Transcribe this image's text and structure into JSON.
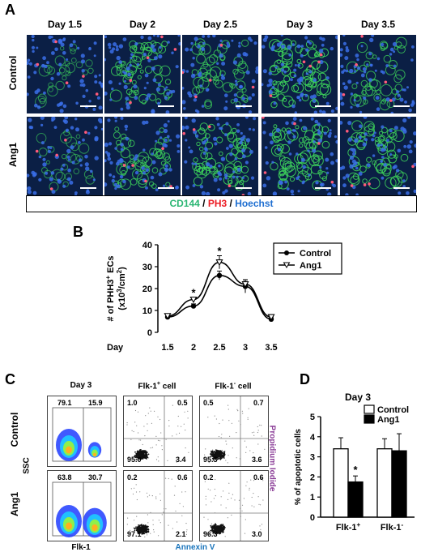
{
  "panelA": {
    "label": "A",
    "days": [
      "Day 1.5",
      "Day 2",
      "Day 2.5",
      "Day 3",
      "Day 3.5"
    ],
    "rows": [
      "Control",
      "Ang1"
    ],
    "stain": {
      "cd144": "CD144",
      "sep1": " / ",
      "ph3": "PH3",
      "sep2": " / ",
      "hoechst": "Hoechst"
    },
    "colors": {
      "cd144": "#2bb673",
      "ph3": "#ed1c24",
      "hoechst": "#1f6fd1"
    }
  },
  "panelB": {
    "label": "B",
    "chart_data": {
      "type": "line",
      "ylabel_line1": "# of PHH3",
      "ylabel_sup": "+",
      "ylabel_line1b": " ECs",
      "ylabel_line2": "(x10",
      "ylabel_sup2": "3",
      "ylabel_line2b": "/cm",
      "ylabel_sup3": "2",
      "ylabel_line2c": ")",
      "xlabel": "Day",
      "categories": [
        "1.5",
        "2",
        "2.5",
        "3",
        "3.5"
      ],
      "ylim": [
        0,
        40
      ],
      "yticks": [
        "0",
        "10",
        "20",
        "30",
        "40"
      ],
      "series": [
        {
          "name": "Control",
          "values": [
            7,
            12,
            26,
            21,
            6
          ],
          "errors": [
            1,
            1,
            2,
            3,
            1
          ],
          "marker": "filled-circle"
        },
        {
          "name": "Ang1",
          "values": [
            7.5,
            15,
            32,
            22,
            7
          ],
          "errors": [
            1,
            1,
            3,
            2,
            1
          ],
          "marker": "open-triangle"
        }
      ],
      "annotations": [
        "*",
        "*"
      ],
      "legend": "top-right"
    }
  },
  "panelC": {
    "label": "C",
    "rows": [
      "Control",
      "Ang1"
    ],
    "columns": [
      "Day 3",
      "Flk-1",
      "cell",
      "Flk-1",
      "cell"
    ],
    "col_titles": {
      "day": "Day 3",
      "pos_pre": "Flk-1",
      "pos_sup": "+",
      "pos_post": " cell",
      "neg_pre": "Flk-1",
      "neg_sup": "-",
      "neg_post": " cell"
    },
    "yaxis": "SSC",
    "xaxis_first": "Flk-1",
    "xaxis_rest": "Annexin V",
    "right_axis": "Propidium Iodide",
    "control": {
      "ssc": [
        "79.1",
        "15.9"
      ],
      "pos": [
        "1.0",
        "0.5",
        "95.0",
        "3.4"
      ],
      "neg": [
        "0.5",
        "0.7",
        "95.3",
        "3.6"
      ]
    },
    "ang1": {
      "ssc": [
        "63.8",
        "30.7"
      ],
      "pos": [
        "0.2",
        "0.6",
        "97.1",
        "2.1"
      ],
      "neg": [
        "0.2",
        "0.6",
        "96.3",
        "3.0"
      ]
    },
    "colors": {
      "annexin": "#1a75bc",
      "pi": "#8b3d97"
    }
  },
  "panelD": {
    "label": "D",
    "chart_data": {
      "type": "bar",
      "title": "Day 3",
      "ylabel": "% of apoptotic cells",
      "categories": [
        "Flk-1",
        "Flk-1"
      ],
      "category_sups": [
        "+",
        "-"
      ],
      "ylim": [
        0,
        5
      ],
      "yticks": [
        "0",
        "1",
        "2",
        "3",
        "4",
        "5"
      ],
      "series": [
        {
          "name": "Control",
          "values": [
            3.4,
            3.4
          ],
          "errors": [
            0.55,
            0.5
          ],
          "color": "#ffffff"
        },
        {
          "name": "Ang1",
          "values": [
            1.75,
            3.3
          ],
          "errors": [
            0.3,
            0.85
          ],
          "color": "#000000"
        }
      ],
      "annotations": [
        "*"
      ],
      "legend": "top-right"
    }
  }
}
